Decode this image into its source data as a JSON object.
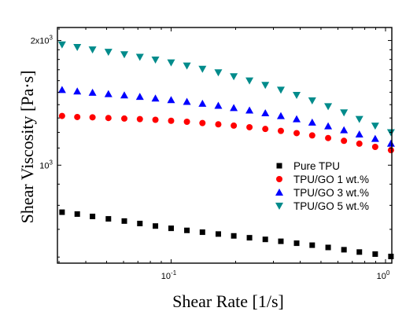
{
  "chart_data": {
    "type": "scatter",
    "xlabel": "Shear Rate [1/s]",
    "ylabel": "Shear Viscosity [Pa·s]",
    "xscale": "log",
    "yscale": "log",
    "xlim": [
      0.0295,
      1.07
    ],
    "ylim": [
      580,
      2150
    ],
    "x_ticks": [
      {
        "value": 0.1,
        "label": "10",
        "exp": "-1"
      },
      {
        "value": 1,
        "label": "10",
        "exp": "0"
      }
    ],
    "y_ticks": [
      {
        "value": 1000,
        "label": "10",
        "exp": "3"
      },
      {
        "value": 2000,
        "label": "2x10",
        "exp": "3"
      }
    ],
    "legend_position": "right",
    "series": [
      {
        "name": "Pure TPU",
        "marker": "square",
        "color": "#000000",
        "x": [
          0.031,
          0.0365,
          0.043,
          0.051,
          0.0605,
          0.0715,
          0.0845,
          0.1,
          0.1185,
          0.14,
          0.166,
          0.196,
          0.232,
          0.275,
          0.325,
          0.385,
          0.455,
          0.54,
          0.64,
          0.755,
          0.895,
          1.06
        ],
        "y": [
          770,
          762,
          752,
          742,
          733,
          723,
          713,
          704,
          696,
          689,
          682,
          675,
          668,
          662,
          655,
          648,
          641,
          633,
          625,
          617,
          610,
          602
        ]
      },
      {
        "name": "TPU/GO 1 wt.%",
        "marker": "circle",
        "color": "#ff0000",
        "x": [
          0.031,
          0.0365,
          0.043,
          0.051,
          0.0605,
          0.0715,
          0.0845,
          0.1,
          0.1185,
          0.14,
          0.166,
          0.196,
          0.232,
          0.275,
          0.325,
          0.385,
          0.455,
          0.54,
          0.64,
          0.755,
          0.895,
          1.06
        ],
        "y": [
          1315,
          1307,
          1305,
          1300,
          1296,
          1292,
          1287,
          1280,
          1273,
          1264,
          1255,
          1246,
          1235,
          1223,
          1210,
          1195,
          1180,
          1163,
          1145,
          1127,
          1107,
          1087
        ]
      },
      {
        "name": "TPU/GO 3 wt.%",
        "marker": "triangle-up",
        "color": "#0000ff",
        "x": [
          0.031,
          0.0365,
          0.043,
          0.051,
          0.0605,
          0.0715,
          0.0845,
          0.1,
          0.1185,
          0.14,
          0.166,
          0.196,
          0.232,
          0.275,
          0.325,
          0.385,
          0.455,
          0.54,
          0.64,
          0.755,
          0.895,
          1.06
        ],
        "y": [
          1520,
          1508,
          1497,
          1486,
          1475,
          1463,
          1450,
          1437,
          1423,
          1408,
          1392,
          1375,
          1356,
          1336,
          1315,
          1292,
          1268,
          1242,
          1215,
          1187,
          1158,
          1128
        ]
      },
      {
        "name": "TPU/GO 5 wt.%",
        "marker": "triangle-down",
        "color": "#008b8b",
        "x": [
          0.031,
          0.0365,
          0.043,
          0.051,
          0.0605,
          0.0715,
          0.0845,
          0.1,
          0.1185,
          0.14,
          0.166,
          0.196,
          0.232,
          0.275,
          0.325,
          0.385,
          0.455,
          0.54,
          0.64,
          0.755,
          0.895,
          1.06
        ],
        "y": [
          1955,
          1928,
          1902,
          1877,
          1851,
          1825,
          1798,
          1769,
          1739,
          1708,
          1674,
          1638,
          1600,
          1561,
          1520,
          1477,
          1432,
          1387,
          1340,
          1292,
          1245,
          1200
        ]
      }
    ]
  }
}
